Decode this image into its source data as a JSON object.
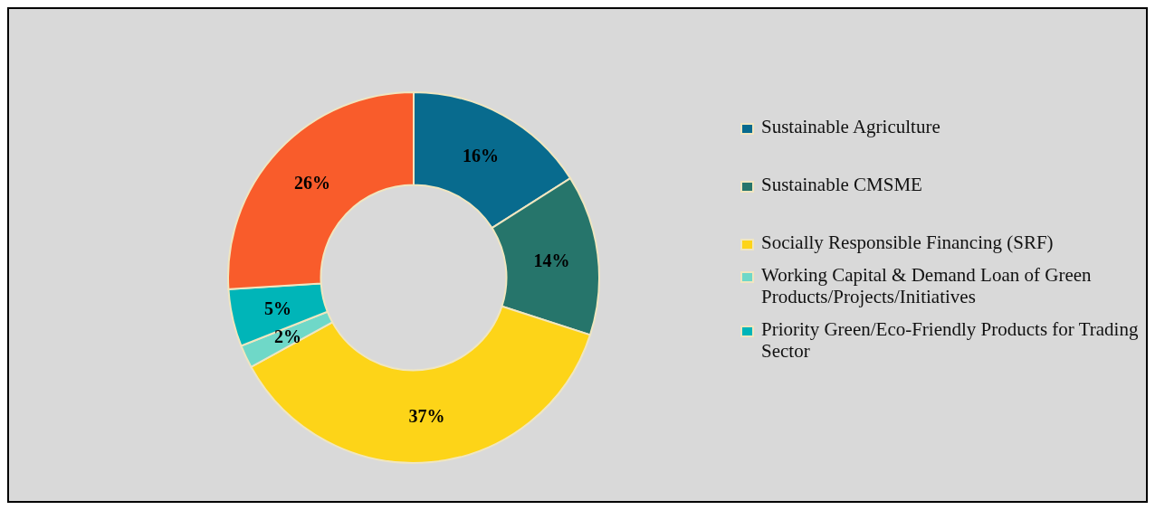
{
  "chart_data": {
    "type": "donut",
    "categories": [
      "Sustainable Agriculture",
      "Sustainable CMSME",
      "Socially Responsible Financing (SRF)",
      "Working Capital & Demand Loan of Green Products/Projects/Initiatives",
      "Priority Green/Eco-Friendly Products for Trading Sector",
      null
    ],
    "values": [
      16,
      14,
      37,
      2,
      5,
      26
    ],
    "colors": [
      "#086b8e",
      "#26756b",
      "#fdd418",
      "#6fd8c8",
      "#00b5b8",
      "#f95c2b"
    ],
    "value_labels": [
      "16%",
      "14%",
      "37%",
      "2%",
      "5%",
      "26%"
    ],
    "legend": "right"
  }
}
